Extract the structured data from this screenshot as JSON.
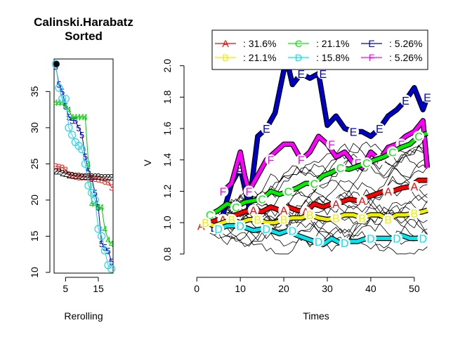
{
  "chart_data": [
    {
      "type": "line",
      "title": "Calinski.Harabatz\nSorted",
      "xlabel": "Rerolling",
      "ylabel": "",
      "xlim": [
        1.5,
        19.5
      ],
      "ylim": [
        9.9,
        39.5
      ],
      "xticks": [
        5,
        15
      ],
      "yticks": [
        10,
        15,
        20,
        25,
        30,
        35
      ],
      "start_marker": {
        "x": 2.2,
        "y": 38.8
      },
      "series": [
        {
          "label": "5",
          "color": "#0000cc",
          "x": [
            2,
            3,
            4,
            5,
            6,
            7,
            8,
            9,
            10,
            11,
            12,
            13,
            14,
            15,
            16,
            17,
            18,
            19
          ],
          "y": [
            38.5,
            36,
            35,
            33,
            31.5,
            31,
            31,
            30,
            29,
            26,
            24,
            23,
            21,
            19,
            14,
            13.5,
            13,
            11.5
          ]
        },
        {
          "label": "4",
          "color": "#00cc00",
          "x": [
            2,
            3,
            4,
            5,
            6,
            7,
            8,
            9,
            10,
            11,
            12,
            13,
            14,
            15,
            16,
            17,
            18,
            19
          ],
          "y": [
            33.5,
            33.5,
            33.5,
            33,
            32.5,
            31.5,
            31.5,
            31.5,
            31.5,
            31.5,
            25,
            19.5,
            19.5,
            19,
            19,
            16,
            14.5,
            14
          ]
        },
        {
          "label": "3",
          "color": "#ff2222",
          "x": [
            2,
            3,
            4,
            5,
            6,
            7,
            8,
            9,
            10,
            11,
            12,
            13,
            14,
            15,
            16,
            17,
            18,
            19
          ],
          "y": [
            24.7,
            24.6,
            24.5,
            24.2,
            23.6,
            23.4,
            23.3,
            23.2,
            23.2,
            23.2,
            23.1,
            23.1,
            23,
            22.9,
            22.8,
            22.6,
            22.5,
            21.8
          ]
        },
        {
          "label": "2",
          "color": "#111111",
          "x": [
            2,
            3,
            4,
            5,
            6,
            7,
            8,
            9,
            10,
            11,
            12,
            13,
            14,
            15,
            16,
            17,
            18,
            19
          ],
          "y": [
            24,
            24,
            23.8,
            23.7,
            23.5,
            23.5,
            23.4,
            23.4,
            23.3,
            23.3,
            23.3,
            23.3,
            23.3,
            23.3,
            23.2,
            23.2,
            23.2,
            23.2
          ]
        },
        {
          "label": "",
          "color": "#22d4ee",
          "x": [
            2,
            3,
            4,
            5,
            6,
            7,
            8,
            9,
            10,
            11,
            12,
            13,
            14,
            15,
            16,
            17,
            18,
            19
          ],
          "y": [
            38.8,
            35.5,
            34,
            34,
            30,
            29,
            28,
            27.5,
            27,
            25,
            22,
            21,
            20,
            16,
            15,
            13,
            11,
            10.5
          ]
        }
      ]
    },
    {
      "type": "line",
      "title": "",
      "xlabel": "Times",
      "ylabel": "V",
      "xlim": [
        -1,
        56
      ],
      "ylim": [
        0.75,
        2.07
      ],
      "xticks": [
        0,
        10,
        20,
        30,
        40,
        50
      ],
      "yticks": [
        0.8,
        1.0,
        1.2,
        1.4,
        1.6,
        1.8,
        2.0
      ],
      "legend": {
        "placement": "top",
        "entries": [
          {
            "letter": "A",
            "color": "#ff0000",
            "pct": ": 31.6%"
          },
          {
            "letter": "C",
            "color": "#00ee00",
            "pct": ": 21.1%"
          },
          {
            "letter": "E",
            "color": "#0000cc",
            "pct": ": 5.26%"
          },
          {
            "letter": "B",
            "color": "#eeee00",
            "pct": ": 21.1%"
          },
          {
            "letter": "D",
            "color": "#00e5ee",
            "pct": ": 15.8%"
          },
          {
            "letter": "F",
            "color": "#ff00ff",
            "pct": ": 5.26%"
          }
        ]
      },
      "background_series_count": 19,
      "series": [
        {
          "name": "E",
          "color": "#0000cc",
          "x": [
            4,
            6,
            8,
            10,
            12,
            14,
            16,
            18,
            20,
            21,
            22,
            24,
            26,
            28,
            30,
            32,
            34,
            36,
            38,
            40,
            42,
            44,
            46,
            48,
            50,
            52,
            53
          ],
          "y": [
            0.97,
            1.05,
            1.25,
            1.35,
            1.1,
            1.55,
            1.6,
            1.7,
            1.97,
            2.0,
            1.88,
            1.95,
            1.92,
            1.95,
            1.62,
            1.68,
            1.6,
            1.58,
            1.58,
            1.55,
            1.6,
            1.68,
            1.72,
            1.78,
            1.86,
            1.72,
            1.8
          ],
          "labels_at": [
            4,
            10,
            16,
            24,
            29,
            36,
            42,
            48,
            53
          ]
        },
        {
          "name": "F",
          "color": "#ff00ff",
          "x": [
            6,
            8,
            10,
            11,
            12,
            14,
            16,
            18,
            20,
            22,
            24,
            26,
            28,
            30,
            32,
            34,
            36,
            38,
            40,
            42,
            44,
            46,
            48,
            50,
            52,
            53
          ],
          "y": [
            1.2,
            1.25,
            1.45,
            1.3,
            1.2,
            1.3,
            1.4,
            1.45,
            1.5,
            1.5,
            1.4,
            1.45,
            1.55,
            1.5,
            1.42,
            1.45,
            1.38,
            1.35,
            1.45,
            1.4,
            1.48,
            1.5,
            1.55,
            1.58,
            1.65,
            1.35
          ],
          "labels_at": [
            6,
            12,
            17,
            24,
            31,
            37,
            42,
            47
          ]
        },
        {
          "name": "C",
          "color": "#00ee00",
          "x": [
            3,
            5,
            7,
            9,
            11,
            13,
            15,
            17,
            19,
            21,
            23,
            25,
            27,
            29,
            31,
            33,
            35,
            37,
            39,
            41,
            43,
            45,
            47,
            49,
            51,
            53
          ],
          "y": [
            1.05,
            1.08,
            1.12,
            1.1,
            1.13,
            1.14,
            1.15,
            1.2,
            1.18,
            1.2,
            1.22,
            1.25,
            1.25,
            1.3,
            1.32,
            1.35,
            1.34,
            1.36,
            1.38,
            1.4,
            1.42,
            1.45,
            1.48,
            1.5,
            1.55,
            1.57
          ],
          "labels_at": [
            3,
            9,
            15,
            21,
            27,
            33,
            39,
            45,
            51
          ]
        },
        {
          "name": "A",
          "color": "#ff0000",
          "x": [
            1,
            3,
            5,
            7,
            9,
            11,
            13,
            15,
            17,
            19,
            21,
            23,
            25,
            27,
            29,
            31,
            33,
            35,
            37,
            39,
            41,
            43,
            45,
            47,
            49,
            51,
            53
          ],
          "y": [
            0.98,
            1.0,
            1.02,
            1.03,
            1.05,
            1.07,
            1.08,
            1.07,
            1.1,
            1.08,
            1.1,
            1.08,
            1.07,
            1.12,
            1.1,
            1.12,
            1.13,
            1.15,
            1.14,
            1.16,
            1.18,
            1.2,
            1.2,
            1.22,
            1.23,
            1.27,
            1.27
          ],
          "labels_at": [
            1,
            6,
            13,
            20,
            25,
            32,
            38,
            44,
            50
          ]
        },
        {
          "name": "B",
          "color": "#eeee00",
          "x": [
            2,
            4,
            6,
            8,
            10,
            12,
            14,
            16,
            18,
            20,
            22,
            24,
            26,
            28,
            30,
            32,
            34,
            36,
            38,
            40,
            42,
            44,
            46,
            48,
            50,
            52,
            53
          ],
          "y": [
            1.0,
            0.98,
            1.0,
            1.02,
            1.0,
            1.02,
            1.02,
            1.0,
            1.0,
            1.02,
            1.03,
            1.03,
            1.05,
            1.03,
            1.02,
            1.03,
            1.05,
            1.05,
            1.03,
            1.05,
            1.05,
            1.02,
            1.05,
            1.05,
            1.06,
            1.07,
            1.08
          ],
          "labels_at": [
            2,
            8,
            14,
            20,
            26,
            32,
            38,
            44,
            50
          ]
        },
        {
          "name": "D",
          "color": "#00e5ee",
          "x": [
            5,
            7,
            9,
            11,
            13,
            15,
            17,
            19,
            21,
            23,
            25,
            27,
            29,
            31,
            33,
            35,
            37,
            39,
            41,
            43,
            45,
            47,
            49,
            51,
            53
          ],
          "y": [
            0.96,
            0.98,
            0.98,
            0.97,
            0.95,
            0.96,
            0.95,
            0.93,
            0.95,
            0.92,
            0.9,
            0.88,
            0.86,
            0.9,
            0.87,
            0.88,
            0.88,
            0.9,
            0.9,
            0.9,
            0.9,
            0.92,
            0.9,
            0.9,
            0.89
          ],
          "labels_at": [
            5,
            10,
            16,
            22,
            28,
            34,
            40,
            46,
            52
          ]
        }
      ]
    }
  ]
}
